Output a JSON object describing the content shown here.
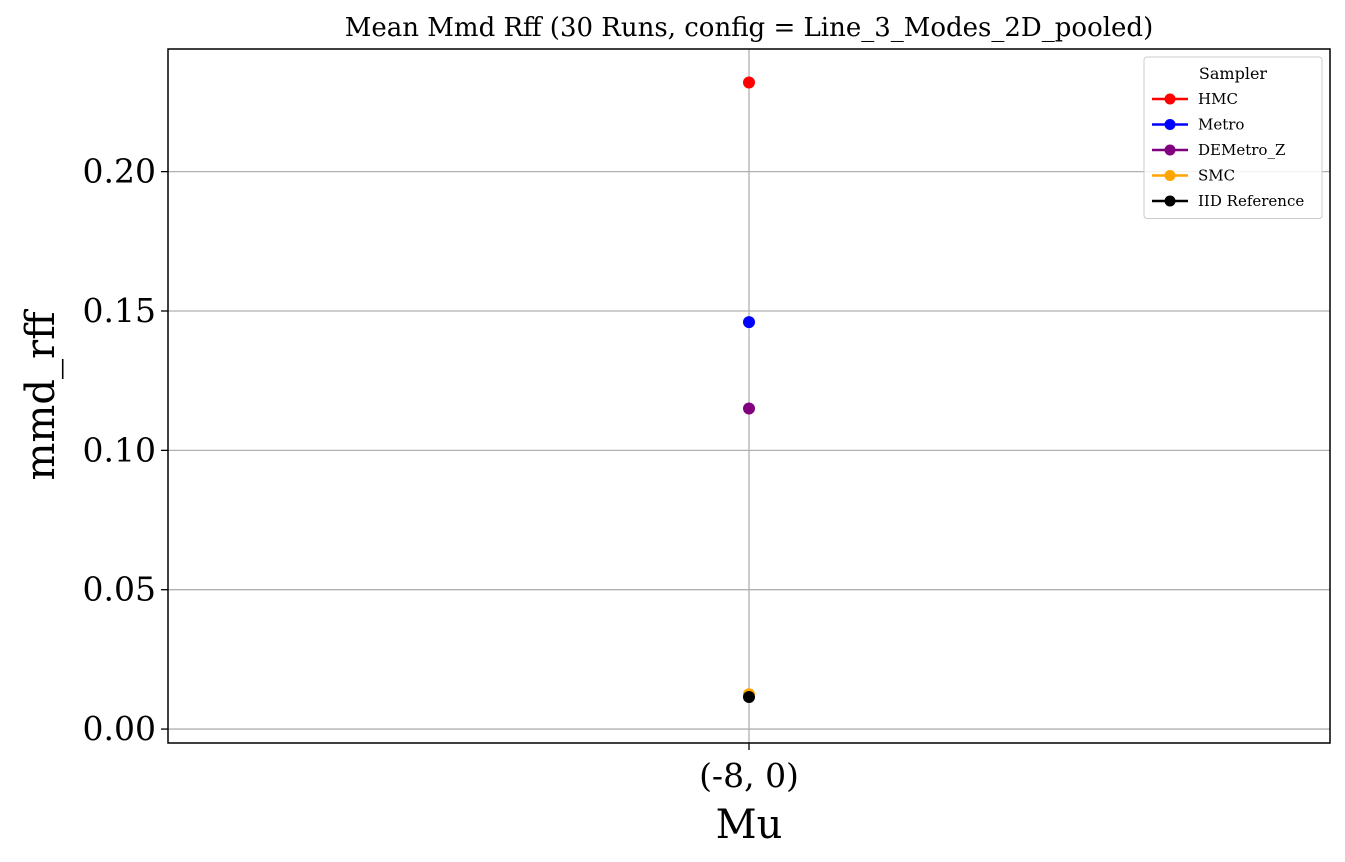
{
  "chart_data": {
    "type": "scatter",
    "title": "Mean Mmd Rff (30 Runs, config = Line_3_Modes_2D_pooled)",
    "xlabel": "Mu",
    "ylabel": "mmd_rff",
    "categories": [
      "(-8, 0)"
    ],
    "ylim": [
      -0.005,
      0.244
    ],
    "yticks": [
      "0.00",
      "0.05",
      "0.10",
      "0.15",
      "0.20"
    ],
    "ytick_values": [
      0.0,
      0.05,
      0.1,
      0.15,
      0.2
    ],
    "grid": true,
    "legend": {
      "title": "Sampler",
      "placement": "top-right"
    },
    "series": [
      {
        "name": "HMC",
        "color": "#ff0000",
        "values": [
          0.232
        ]
      },
      {
        "name": "Metro",
        "color": "#0000ff",
        "values": [
          0.146
        ]
      },
      {
        "name": "DEMetro_Z",
        "color": "#800080",
        "values": [
          0.115
        ]
      },
      {
        "name": "SMC",
        "color": "#ffa500",
        "values": [
          0.0125
        ]
      },
      {
        "name": "IID Reference",
        "color": "#000000",
        "values": [
          0.0115
        ]
      }
    ]
  }
}
